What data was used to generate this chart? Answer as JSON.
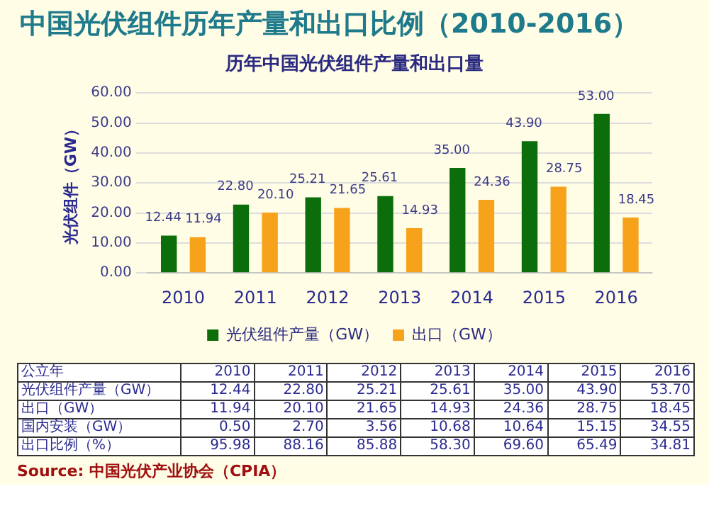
{
  "chart_data": [
    {
      "type": "other",
      "title": "中国光伏组件历年产量和出口比例（2010-2016）"
    },
    {
      "type": "bar",
      "title": "历年中国光伏组件产量和出口量",
      "ylabel": "光伏组件（GW）",
      "categories": [
        "2010",
        "2011",
        "2012",
        "2013",
        "2014",
        "2015",
        "2016"
      ],
      "series": [
        {
          "name": "光伏组件产量（GW）",
          "color": "#0b6e0b",
          "values": [
            12.44,
            22.8,
            25.21,
            25.61,
            35.0,
            43.9,
            53.0
          ],
          "value_labels": [
            "12.44",
            "22.80",
            "25.21",
            "25.61",
            "35.00",
            "43.90",
            "53.00"
          ]
        },
        {
          "name": "出口（GW）",
          "color": "#f7a21b",
          "values": [
            11.94,
            20.1,
            21.65,
            14.93,
            24.36,
            28.75,
            18.45
          ],
          "value_labels": [
            "11.94",
            "20.10",
            "21.65",
            "14.93",
            "24.36",
            "28.75",
            "18.45"
          ]
        }
      ],
      "ylim": [
        0,
        60
      ],
      "yticks": [
        {
          "value": 0,
          "label": "0.00"
        },
        {
          "value": 10,
          "label": "10.00"
        },
        {
          "value": 20,
          "label": "20.00"
        },
        {
          "value": 30,
          "label": "30.00"
        },
        {
          "value": 40,
          "label": "40.00"
        },
        {
          "value": 50,
          "label": "50.00"
        },
        {
          "value": 60,
          "label": "60.00"
        }
      ],
      "grid": "y",
      "legend": "bottom"
    },
    {
      "type": "heatmap",
      "xlabel": "公立年",
      "categories": [
        "2010",
        "2011",
        "2012",
        "2013",
        "2014",
        "2015",
        "2016"
      ],
      "y_categories": [
        "光伏组件产量（GW）",
        "出口（GW）",
        "国内安装（GW）",
        "出口比例（%）"
      ],
      "cells": [
        [
          12.44,
          22.8,
          25.21,
          25.61,
          35.0,
          43.9,
          53.7
        ],
        [
          11.94,
          20.1,
          21.65,
          14.93,
          24.36,
          28.75,
          18.45
        ],
        [
          0.5,
          2.7,
          3.56,
          10.68,
          10.64,
          15.15,
          34.55
        ],
        [
          95.98,
          88.16,
          85.88,
          58.3,
          69.6,
          65.49,
          34.81
        ]
      ],
      "data_labels": true,
      "cell_labels": [
        [
          "12.44",
          "22.80",
          "25.21",
          "25.61",
          "35.00",
          "43.90",
          "53.70"
        ],
        [
          "11.94",
          "20.10",
          "21.65",
          "14.93",
          "24.36",
          "28.75",
          "18.45"
        ],
        [
          "0.50",
          "2.70",
          "3.56",
          "10.68",
          "10.64",
          "15.15",
          "34.55"
        ],
        [
          "95.98",
          "88.16",
          "85.88",
          "58.30",
          "69.60",
          "65.49",
          "34.81"
        ]
      ],
      "annotations": [
        "Source: 中国光伏产业协会（CPIA）"
      ]
    }
  ]
}
